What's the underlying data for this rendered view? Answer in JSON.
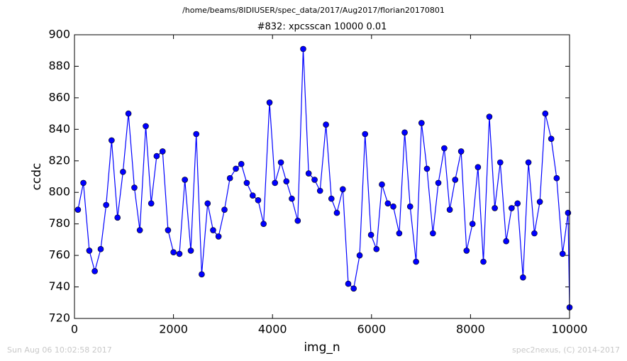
{
  "chart_data": {
    "type": "line",
    "title": "/home/beams/8IDIUSER/spec_data/2017/Aug2017/florian20170801",
    "subtitle": "#832: xpcsscan 10000 0.01",
    "x_label": "img_n",
    "y_label": "ccdc",
    "footer_left": "Sun Aug 06 10:02:58 2017",
    "footer_right": "spec2nexus, (C) 2014-2017",
    "color": "#0000ff",
    "marker": "circle",
    "x": [
      70,
      180,
      300,
      410,
      530,
      640,
      750,
      870,
      980,
      1090,
      1210,
      1320,
      1440,
      1550,
      1660,
      1780,
      1890,
      2000,
      2120,
      2230,
      2350,
      2460,
      2570,
      2690,
      2800,
      2910,
      3030,
      3140,
      3260,
      3370,
      3480,
      3600,
      3710,
      3820,
      3940,
      4050,
      4170,
      4280,
      4390,
      4510,
      4620,
      4730,
      4850,
      4960,
      5080,
      5190,
      5300,
      5420,
      5530,
      5640,
      5760,
      5870,
      5990,
      6100,
      6210,
      6330,
      6440,
      6560,
      6670,
      6780,
      6900,
      7010,
      7120,
      7240,
      7350,
      7470,
      7580,
      7690,
      7810,
      7920,
      8040,
      8150,
      8260,
      8380,
      8490,
      8600,
      8720,
      8830,
      8950,
      9060,
      9170,
      9290,
      9400,
      9510,
      9630,
      9740,
      9860,
      9970,
      10000
    ],
    "values": [
      789,
      806,
      763,
      750,
      764,
      792,
      833,
      784,
      813,
      850,
      803,
      776,
      842,
      793,
      823,
      826,
      776,
      762,
      761,
      808,
      763,
      837,
      748,
      793,
      776,
      772,
      789,
      809,
      815,
      818,
      806,
      798,
      795,
      780,
      857,
      806,
      819,
      807,
      796,
      782,
      891,
      812,
      808,
      801,
      843,
      796,
      787,
      802,
      742,
      739,
      760,
      837,
      773,
      764,
      805,
      793,
      791,
      774,
      838,
      791,
      756,
      844,
      815,
      774,
      806,
      828,
      789,
      808,
      826,
      763,
      780,
      816,
      756,
      848,
      790,
      819,
      769,
      790,
      793,
      746,
      819,
      774,
      794,
      850,
      834,
      809,
      761,
      787,
      727
    ],
    "xlim": [
      0,
      10000
    ],
    "xticks": [
      0,
      2000,
      4000,
      6000,
      8000,
      10000
    ],
    "ylim": [
      720,
      900
    ],
    "yticks": [
      720,
      740,
      760,
      780,
      800,
      820,
      840,
      860,
      880,
      900
    ]
  }
}
